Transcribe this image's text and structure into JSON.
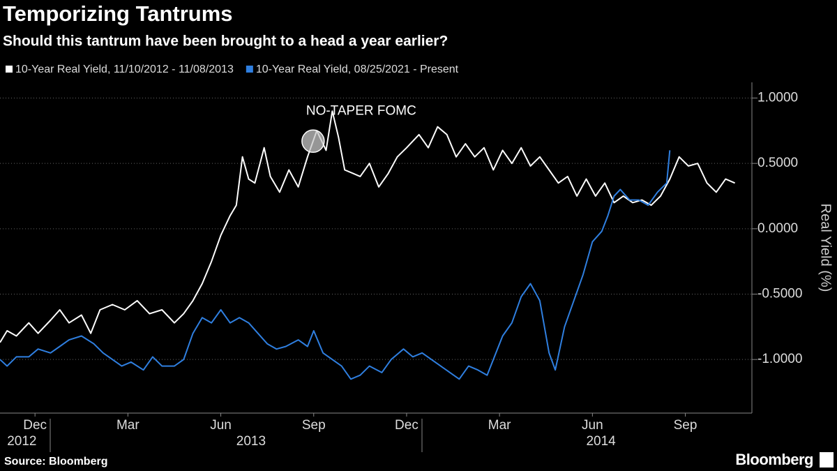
{
  "chart_data": {
    "type": "line",
    "title": "Temporizing Tantrums",
    "subtitle": "Should this tantrum have been brought to a head a year earlier?",
    "y_label": "Real Yield (%)",
    "source": "Source: Bloomberg",
    "brand": "Bloomberg",
    "legend": "top-left",
    "grid": true,
    "annotation": {
      "text": "NO-TAPER FOMC",
      "x": 9.48,
      "y": 0.67
    },
    "xlim": [
      -0.63,
      23.65
    ],
    "xticks": [
      {
        "value": 0.5,
        "label": "Dec"
      },
      {
        "value": 3.5,
        "label": "Mar"
      },
      {
        "value": 6.5,
        "label": "Jun"
      },
      {
        "value": 9.5,
        "label": "Sep"
      },
      {
        "value": 12.5,
        "label": "Dec"
      },
      {
        "value": 15.5,
        "label": "Mar"
      },
      {
        "value": 18.5,
        "label": "Jun"
      },
      {
        "value": 21.5,
        "label": "Sep"
      }
    ],
    "year_labels": [
      {
        "value": -0.4,
        "label": "2012"
      },
      {
        "value": 7.0,
        "label": "2013"
      },
      {
        "value": 18.3,
        "label": "2014"
      }
    ],
    "ylim": [
      -1.41,
      1.12
    ],
    "yticks": [
      {
        "value": 1,
        "label": "1.0000"
      },
      {
        "value": 0.5,
        "label": "0.5000"
      },
      {
        "value": 0,
        "label": "0.0000"
      },
      {
        "value": -0.5,
        "label": "-0.5000"
      },
      {
        "value": -1,
        "label": "-1.0000"
      }
    ],
    "series": [
      {
        "name": "10-Year Real Yield, 11/10/2012 - 11/08/2013",
        "color": "#ffffff",
        "x": [
          -0.63,
          -0.4,
          -0.1,
          0.3,
          0.6,
          1.0,
          1.3,
          1.6,
          2.0,
          2.3,
          2.6,
          3.0,
          3.4,
          3.8,
          4.2,
          4.6,
          5.0,
          5.3,
          5.6,
          5.9,
          6.2,
          6.5,
          6.8,
          7.0,
          7.2,
          7.4,
          7.6,
          7.9,
          8.1,
          8.4,
          8.7,
          9.0,
          9.3,
          9.6,
          9.9,
          10.1,
          10.3,
          10.5,
          10.8,
          11.0,
          11.3,
          11.6,
          11.9,
          12.2,
          12.5,
          12.9,
          13.2,
          13.5,
          13.8,
          14.1,
          14.4,
          14.7,
          15.0,
          15.3,
          15.6,
          15.9,
          16.2,
          16.5,
          16.8,
          17.1,
          17.4,
          17.7,
          18.0,
          18.3,
          18.6,
          18.9,
          19.2,
          19.5,
          19.8,
          20.1,
          20.4,
          20.7,
          21.0,
          21.3,
          21.6,
          21.9,
          22.2,
          22.5,
          22.8,
          23.1
        ],
        "values": [
          -0.87,
          -0.78,
          -0.82,
          -0.72,
          -0.8,
          -0.7,
          -0.62,
          -0.72,
          -0.66,
          -0.8,
          -0.62,
          -0.58,
          -0.62,
          -0.55,
          -0.65,
          -0.62,
          -0.72,
          -0.65,
          -0.55,
          -0.42,
          -0.25,
          -0.05,
          0.1,
          0.18,
          0.55,
          0.38,
          0.35,
          0.62,
          0.4,
          0.28,
          0.45,
          0.32,
          0.55,
          0.75,
          0.6,
          0.9,
          0.7,
          0.45,
          0.42,
          0.4,
          0.5,
          0.32,
          0.42,
          0.55,
          0.62,
          0.72,
          0.62,
          0.78,
          0.72,
          0.55,
          0.65,
          0.55,
          0.62,
          0.45,
          0.6,
          0.5,
          0.62,
          0.48,
          0.55,
          0.45,
          0.35,
          0.4,
          0.25,
          0.38,
          0.25,
          0.35,
          0.2,
          0.25,
          0.2,
          0.22,
          0.18,
          0.25,
          0.38,
          0.55,
          0.48,
          0.5,
          0.35,
          0.28,
          0.38,
          0.35
        ]
      },
      {
        "name": "10-Year Real Yield, 08/25/2021 - Present",
        "color": "#2f7fe0",
        "x": [
          -0.63,
          -0.4,
          -0.1,
          0.3,
          0.6,
          1.0,
          1.3,
          1.6,
          2.0,
          2.4,
          2.7,
          3.0,
          3.3,
          3.6,
          4.0,
          4.3,
          4.6,
          5.0,
          5.3,
          5.6,
          5.9,
          6.2,
          6.5,
          6.8,
          7.1,
          7.4,
          7.7,
          8.0,
          8.3,
          8.6,
          9.0,
          9.3,
          9.5,
          9.8,
          10.1,
          10.4,
          10.7,
          11.0,
          11.3,
          11.7,
          12.0,
          12.4,
          12.7,
          13.0,
          13.3,
          13.6,
          13.9,
          14.2,
          14.5,
          14.8,
          15.1,
          15.3,
          15.6,
          15.9,
          16.2,
          16.5,
          16.8,
          17.1,
          17.3,
          17.6,
          17.9,
          18.2,
          18.5,
          18.8,
          19.0,
          19.2,
          19.4,
          19.7,
          20.0,
          20.3,
          20.6,
          20.9,
          21.0
        ],
        "values": [
          -1.0,
          -1.05,
          -0.98,
          -0.98,
          -0.92,
          -0.95,
          -0.9,
          -0.85,
          -0.82,
          -0.88,
          -0.95,
          -1.0,
          -1.05,
          -1.02,
          -1.08,
          -0.98,
          -1.05,
          -1.05,
          -1.0,
          -0.8,
          -0.68,
          -0.72,
          -0.62,
          -0.72,
          -0.68,
          -0.72,
          -0.8,
          -0.88,
          -0.92,
          -0.9,
          -0.85,
          -0.9,
          -0.78,
          -0.95,
          -1.0,
          -1.05,
          -1.15,
          -1.12,
          -1.05,
          -1.1,
          -1.0,
          -0.92,
          -0.98,
          -0.95,
          -1.0,
          -1.05,
          -1.1,
          -1.15,
          -1.05,
          -1.08,
          -1.12,
          -1.0,
          -0.82,
          -0.72,
          -0.52,
          -0.42,
          -0.55,
          -0.95,
          -1.08,
          -0.75,
          -0.55,
          -0.35,
          -0.1,
          -0.02,
          0.1,
          0.25,
          0.3,
          0.22,
          0.22,
          0.18,
          0.28,
          0.35,
          0.6
        ]
      }
    ]
  }
}
